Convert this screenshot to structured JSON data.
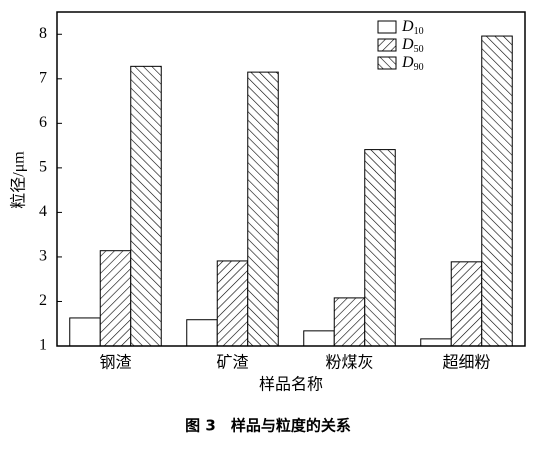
{
  "chart_data": {
    "type": "bar",
    "x_label": "样品名称",
    "y_label": "粒径/μm",
    "caption": "图 3　样品与粒度的关系",
    "categories": [
      "钢渣",
      "矿渣",
      "粉煤灰",
      "超细粉"
    ],
    "series": [
      {
        "name": "D10",
        "color": "#ffffff",
        "hatch": "none",
        "values": [
          1.63,
          1.59,
          1.34,
          1.16
        ]
      },
      {
        "name": "D50",
        "color": "#ffffff",
        "hatch": "forward",
        "values": [
          3.14,
          2.91,
          2.08,
          2.89
        ]
      },
      {
        "name": "D90",
        "color": "#ffffff",
        "hatch": "backward",
        "values": [
          7.28,
          7.15,
          5.41,
          7.96
        ]
      }
    ],
    "ylim": [
      1,
      8.5
    ],
    "yticks": [
      1,
      2,
      3,
      4,
      5,
      6,
      7,
      8
    ],
    "legend": "top-right"
  }
}
